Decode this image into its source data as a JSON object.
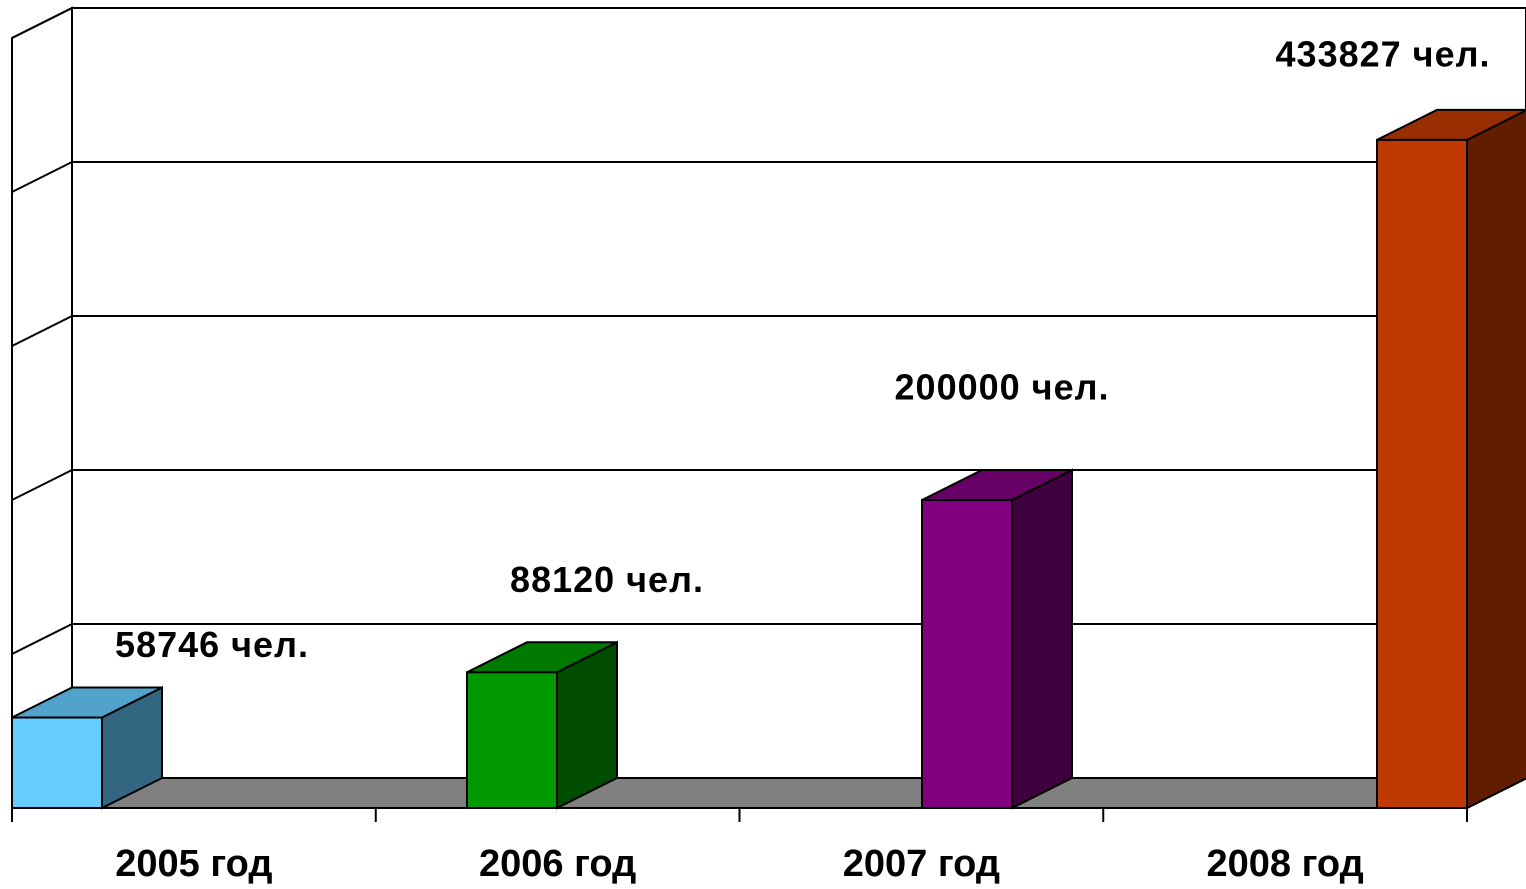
{
  "chart_data": {
    "type": "bar3d",
    "categories": [
      "2005 год",
      "2006 год",
      "2007 год",
      "2008 год"
    ],
    "values": [
      58746,
      88120,
      200000,
      433827
    ],
    "value_labels": [
      "58746 чел.",
      "88120 чел.",
      "200000 чел.",
      "433827 чел."
    ],
    "colors": [
      "#66ccff",
      "#009900",
      "#800080",
      "#bf3a00"
    ],
    "ylim": [
      0,
      500000
    ],
    "yticks": [
      0,
      100000,
      200000,
      300000,
      400000,
      500000
    ],
    "grid": true
  }
}
